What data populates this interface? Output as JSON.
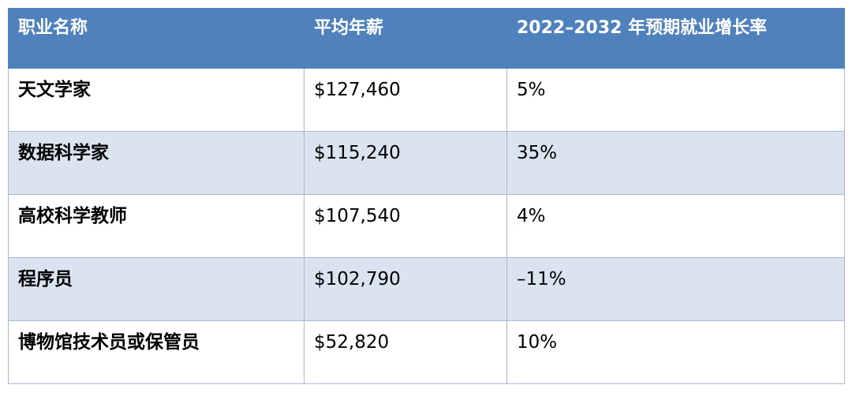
{
  "table": {
    "headers": [
      "职业名称",
      "平均年薪",
      "2022–2032 年预期就业增长率"
    ],
    "rows": [
      {
        "occupation": "天文学家",
        "salary": "$127,460",
        "growth": "5%"
      },
      {
        "occupation": "数据科学家",
        "salary": "$115,240",
        "growth": "35%"
      },
      {
        "occupation": "高校科学教师",
        "salary": "$107,540",
        "growth": "4%"
      },
      {
        "occupation": "程序员",
        "salary": "$102,790",
        "growth": "–11%"
      },
      {
        "occupation": "博物馆技术员或保管员",
        "salary": "$52,820",
        "growth": "10%"
      }
    ]
  },
  "colors": {
    "header_bg": "#4f81bd",
    "header_text": "#ffffff",
    "band_bg": "#dae3f0",
    "border": "#a9b8cf"
  }
}
